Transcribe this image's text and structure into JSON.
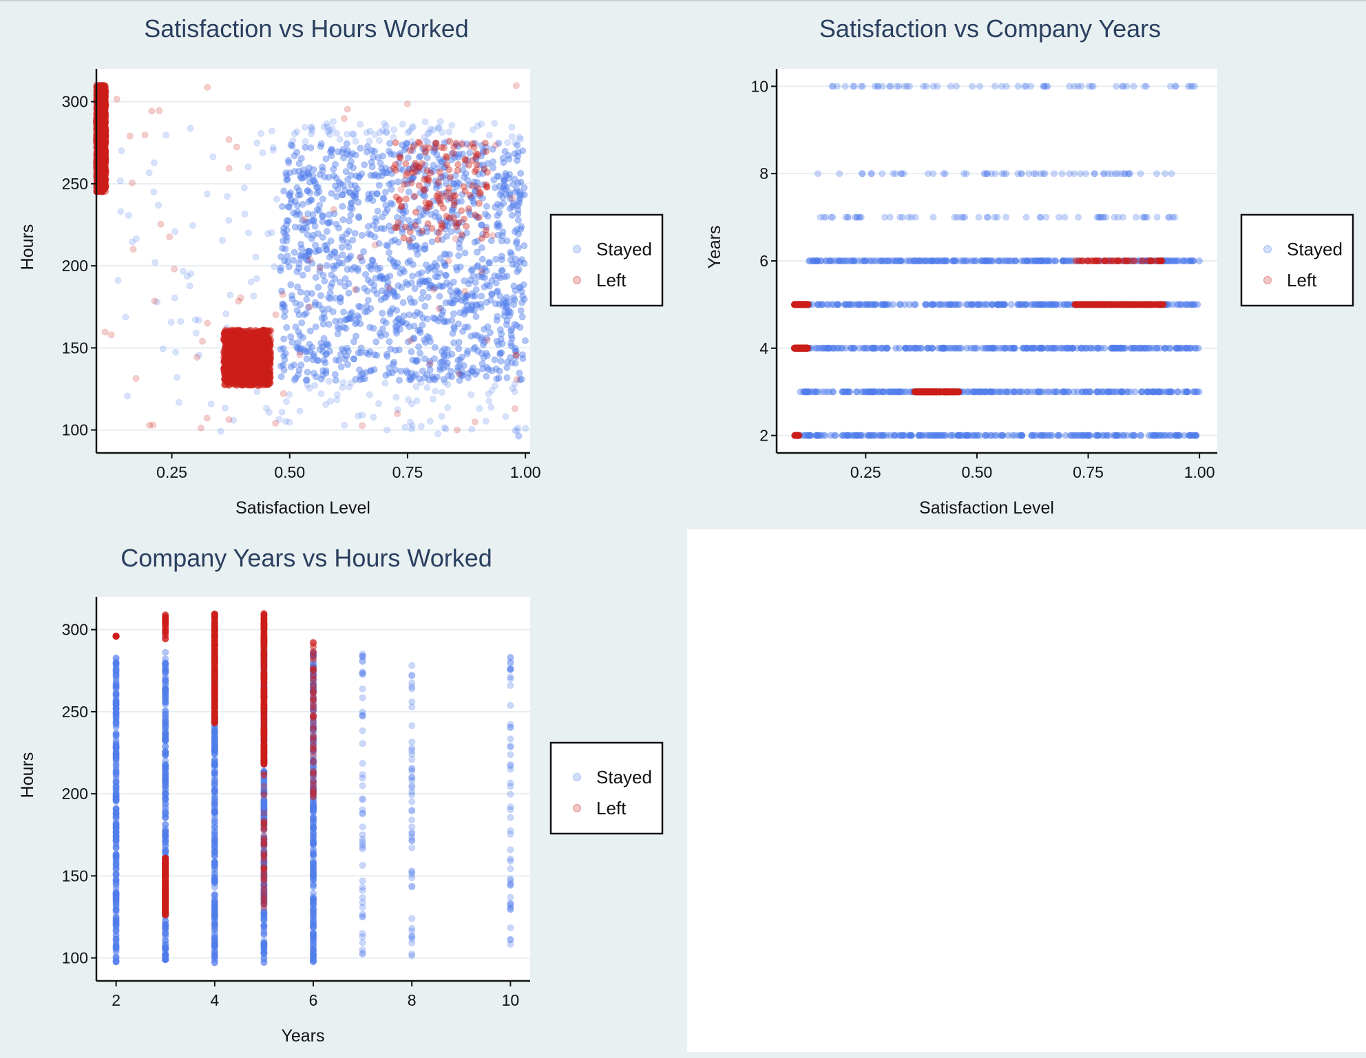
{
  "legend": {
    "items": [
      "Stayed",
      "Left"
    ]
  },
  "colors": {
    "stayed": "#4f7cec",
    "left": "#cc1f1a",
    "title": "#2a3f5f",
    "background": "#e9f0f2",
    "plot_background": "#ffffff",
    "grid": "#e6eef1"
  },
  "chart_data": [
    {
      "type": "scatter",
      "title": "Satisfaction vs Hours Worked",
      "xlabel": "Satisfaction Level",
      "ylabel": "Hours",
      "xlim": [
        0.09,
        1.01
      ],
      "ylim": [
        86,
        320
      ],
      "xticks": [
        0.25,
        0.5,
        0.75,
        1.0
      ],
      "xtick_labels": [
        "0.25",
        "0.50",
        "0.75",
        "1.00"
      ],
      "yticks": [
        100,
        150,
        200,
        250,
        300
      ],
      "ytick_labels": [
        "100",
        "150",
        "200",
        "250",
        "300"
      ],
      "grid": true,
      "legend_position": "right",
      "series": [
        {
          "name": "Stayed",
          "color": "#4f7cec",
          "clusters": [
            {
              "x": [
                0.48,
                1.0
              ],
              "y": [
                130,
                275
              ],
              "density": "dense"
            },
            {
              "x": [
                0.13,
                0.48
              ],
              "y": [
                96,
                288
              ],
              "density": "sparse"
            },
            {
              "x": [
                0.48,
                1.0
              ],
              "y": [
                96,
                130
              ],
              "density": "sparse"
            },
            {
              "x": [
                0.5,
                1.0
              ],
              "y": [
                275,
                288
              ],
              "density": "sparse"
            }
          ]
        },
        {
          "name": "Left",
          "color": "#cc1f1a",
          "clusters": [
            {
              "x": [
                0.09,
                0.11
              ],
              "y": [
                245,
                310
              ],
              "density": "dense"
            },
            {
              "x": [
                0.36,
                0.46
              ],
              "y": [
                127,
                161
              ],
              "density": "dense"
            },
            {
              "x": [
                0.72,
                0.92
              ],
              "y": [
                215,
                276
              ],
              "density": "medium"
            },
            {
              "x": [
                0.1,
                1.0
              ],
              "y": [
                100,
                310
              ],
              "density": "sparse"
            }
          ]
        }
      ]
    },
    {
      "type": "scatter",
      "title": "Satisfaction vs Company Years",
      "xlabel": "Satisfaction Level",
      "ylabel": "Years",
      "xlim": [
        0.05,
        1.04
      ],
      "ylim": [
        1.6,
        10.4
      ],
      "xticks": [
        0.25,
        0.5,
        0.75,
        1.0
      ],
      "xtick_labels": [
        "0.25",
        "0.50",
        "0.75",
        "1.00"
      ],
      "yticks": [
        2,
        4,
        6,
        8,
        10
      ],
      "ytick_labels": [
        "2",
        "4",
        "6",
        "8",
        "10"
      ],
      "grid": true,
      "legend_position": "right",
      "series": [
        {
          "name": "Stayed",
          "color": "#4f7cec",
          "rows": [
            {
              "y": 2,
              "x": [
                0.1,
                1.0
              ],
              "density": "dense"
            },
            {
              "y": 3,
              "x": [
                0.1,
                1.0
              ],
              "density": "dense"
            },
            {
              "y": 4,
              "x": [
                0.1,
                1.0
              ],
              "density": "dense"
            },
            {
              "y": 5,
              "x": [
                0.1,
                1.0
              ],
              "density": "dense"
            },
            {
              "y": 6,
              "x": [
                0.12,
                1.0
              ],
              "density": "dense"
            },
            {
              "y": 7,
              "x": [
                0.14,
                1.0
              ],
              "density": "sparse"
            },
            {
              "y": 8,
              "x": [
                0.14,
                0.98
              ],
              "density": "sparse"
            },
            {
              "y": 10,
              "x": [
                0.14,
                0.99
              ],
              "density": "sparse"
            }
          ]
        },
        {
          "name": "Left",
          "color": "#cc1f1a",
          "rows": [
            {
              "y": 2,
              "x": [
                0.09,
                0.1
              ],
              "density": "sparse"
            },
            {
              "y": 3,
              "x": [
                0.36,
                0.46
              ],
              "density": "dense"
            },
            {
              "y": 4,
              "x": [
                0.09,
                0.12
              ],
              "density": "dense"
            },
            {
              "y": 5,
              "x": [
                0.09,
                0.12
              ],
              "density": "dense"
            },
            {
              "y": 5,
              "x": [
                0.72,
                0.92
              ],
              "density": "dense"
            },
            {
              "y": 6,
              "x": [
                0.72,
                0.92
              ],
              "density": "medium"
            }
          ]
        }
      ]
    },
    {
      "type": "scatter",
      "title": "Company Years vs Hours Worked",
      "xlabel": "Years",
      "ylabel": "Hours",
      "xlim": [
        1.6,
        10.4
      ],
      "ylim": [
        86,
        320
      ],
      "xticks": [
        2,
        4,
        6,
        8,
        10
      ],
      "xtick_labels": [
        "2",
        "4",
        "6",
        "8",
        "10"
      ],
      "yticks": [
        100,
        150,
        200,
        250,
        300
      ],
      "ytick_labels": [
        "100",
        "150",
        "200",
        "250",
        "300"
      ],
      "grid": true,
      "legend_position": "right",
      "series": [
        {
          "name": "Stayed",
          "color": "#4f7cec",
          "columns": [
            {
              "x": 2,
              "y": [
                97,
                285
              ],
              "density": "dense"
            },
            {
              "x": 3,
              "y": [
                97,
                287
              ],
              "density": "dense"
            },
            {
              "x": 4,
              "y": [
                97,
                288
              ],
              "density": "dense"
            },
            {
              "x": 5,
              "y": [
                97,
                290
              ],
              "density": "dense"
            },
            {
              "x": 6,
              "y": [
                97,
                287
              ],
              "density": "dense"
            },
            {
              "x": 7,
              "y": [
                102,
                286
              ],
              "density": "sparse"
            },
            {
              "x": 8,
              "y": [
                100,
                279
              ],
              "density": "sparse"
            },
            {
              "x": 10,
              "y": [
                108,
                284
              ],
              "density": "sparse"
            }
          ]
        },
        {
          "name": "Left",
          "color": "#cc1f1a",
          "columns": [
            {
              "x": 2,
              "y": [
                296,
                296
              ],
              "density": "sparse"
            },
            {
              "x": 3,
              "y": [
                126,
                161
              ],
              "density": "dense"
            },
            {
              "x": 3,
              "y": [
                294,
                310
              ],
              "density": "sparse"
            },
            {
              "x": 4,
              "y": [
                243,
                310
              ],
              "density": "dense"
            },
            {
              "x": 5,
              "y": [
                218,
                310
              ],
              "density": "dense"
            },
            {
              "x": 5,
              "y": [
                130,
                218
              ],
              "density": "sparse"
            },
            {
              "x": 6,
              "y": [
                196,
                293
              ],
              "density": "medium"
            }
          ]
        }
      ]
    }
  ]
}
